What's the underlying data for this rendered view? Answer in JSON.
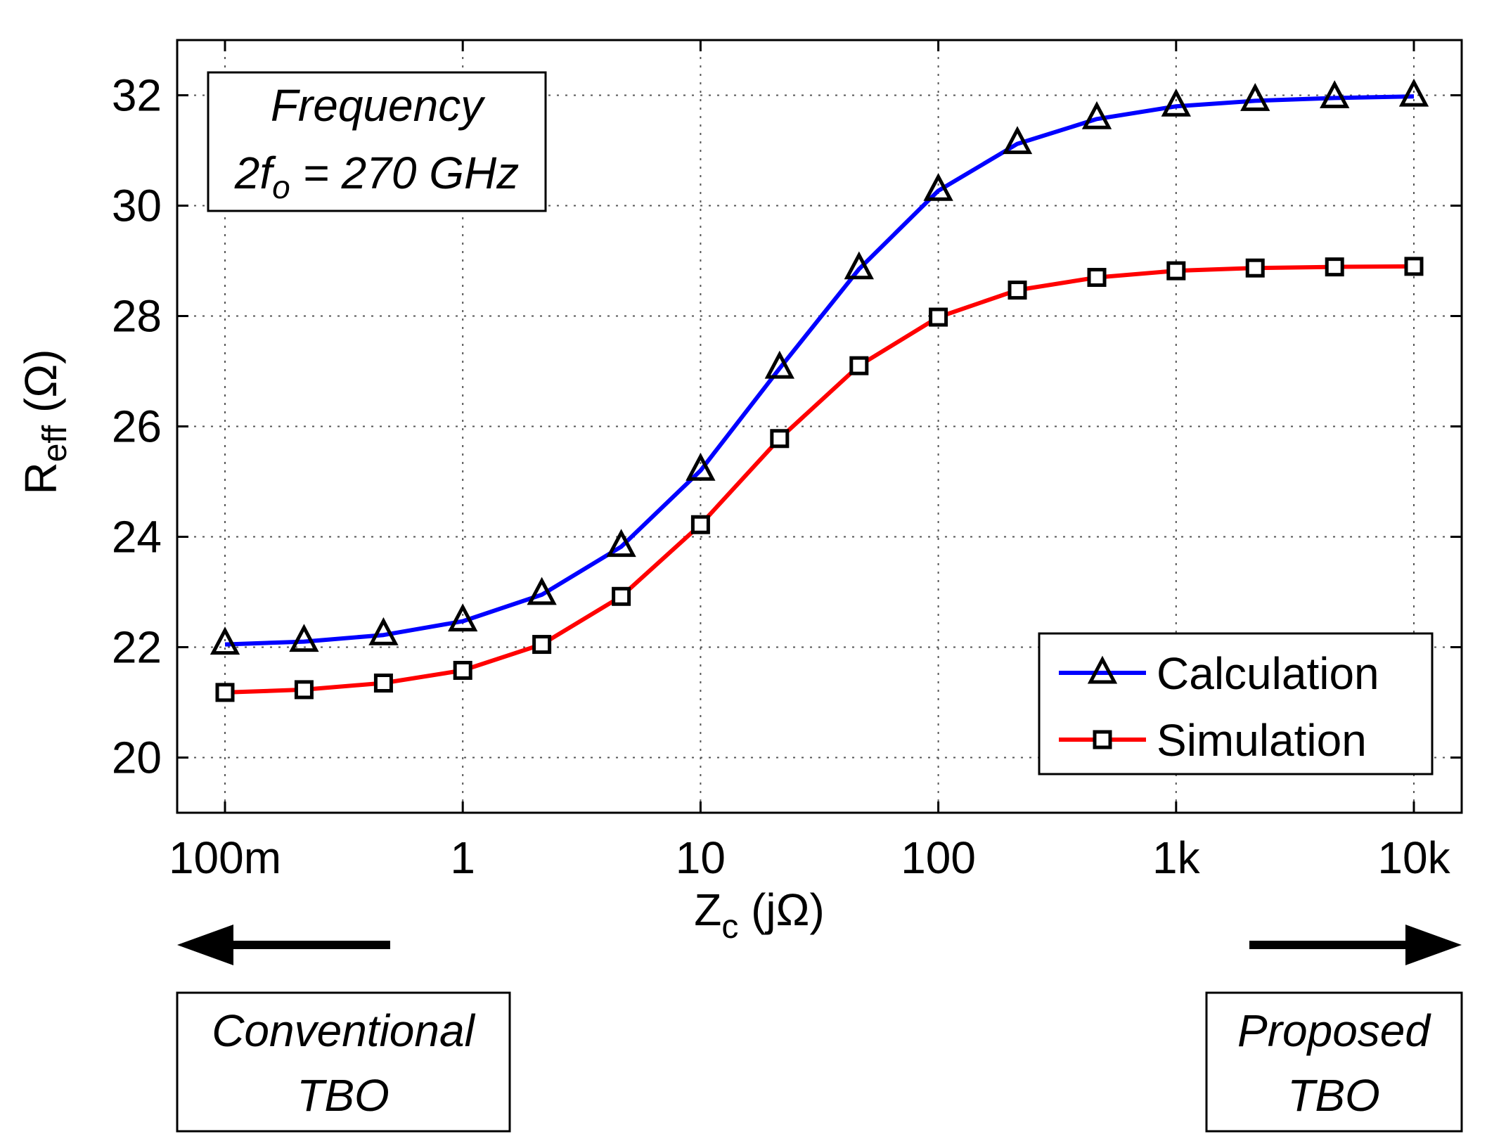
{
  "chart_data": {
    "type": "line",
    "xscale": "log",
    "x_ticks": [
      0.1,
      1,
      10,
      100,
      1000,
      10000
    ],
    "x_tick_labels": [
      "100m",
      "1",
      "10",
      "100",
      "1k",
      "10k"
    ],
    "y_ticks": [
      20,
      22,
      24,
      26,
      28,
      30,
      32
    ],
    "y_tick_labels": [
      "20",
      "22",
      "24",
      "26",
      "28",
      "30",
      "32"
    ],
    "xlim": [
      0.1,
      10000
    ],
    "ylim": [
      19,
      33
    ],
    "xlabel": {
      "main": "Z",
      "sub": "c",
      "unit": " (jΩ)"
    },
    "ylabel": {
      "main": "R",
      "sub": "eff",
      "unit": " (Ω)"
    },
    "x": [
      0.1,
      0.215,
      0.464,
      1,
      2.15,
      4.64,
      10,
      21.5,
      46.4,
      100,
      215,
      464,
      1000,
      2150,
      4640,
      10000
    ],
    "series": [
      {
        "name": "Calculation",
        "color": "#0000ff",
        "marker": "triangle",
        "values": [
          22.05,
          22.1,
          22.22,
          22.47,
          22.95,
          23.82,
          25.2,
          27.05,
          28.85,
          30.27,
          31.12,
          31.57,
          31.8,
          31.9,
          31.95,
          31.98
        ]
      },
      {
        "name": "Simulation",
        "color": "#ff0000",
        "marker": "square",
        "values": [
          21.18,
          21.23,
          21.35,
          21.58,
          22.05,
          22.92,
          24.22,
          25.78,
          27.1,
          27.98,
          28.47,
          28.7,
          28.82,
          28.87,
          28.89,
          28.9
        ]
      }
    ],
    "legend": {
      "location": "bottom-right",
      "entries": [
        "Calculation",
        "Simulation"
      ]
    },
    "annotation": {
      "line1": "Frequency",
      "line2_prefix": "2f",
      "line2_sub": "o",
      "line2_suffix": " = 270 GHz"
    },
    "grid": true,
    "left_note": {
      "arrow": "left",
      "line1": "Conventional",
      "line2": "TBO"
    },
    "right_note": {
      "arrow": "right",
      "line1": "Proposed",
      "line2": "TBO"
    }
  }
}
